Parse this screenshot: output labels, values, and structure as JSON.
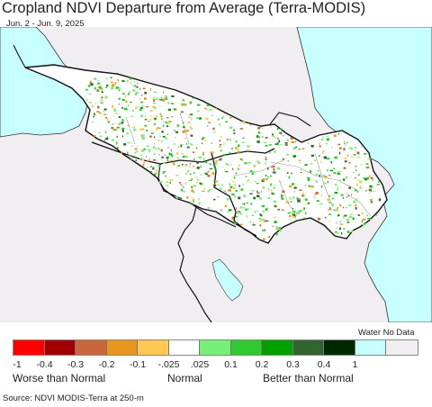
{
  "title": "Cropland NDVI Departure from Average (Terra-MODIS)",
  "subtitle": "Jun. 2 - Jun. 9, 2025",
  "legend": {
    "colors": [
      "#ff0000",
      "#a00000",
      "#c8663c",
      "#e8961e",
      "#ffc850",
      "#ffffff",
      "#78f078",
      "#32c832",
      "#00a000",
      "#326432",
      "#002800",
      "#c8ffff",
      "#f0eef0"
    ],
    "tick_labels": [
      "-1",
      "-0.4",
      "-0.3",
      "-0.2",
      "-0.1",
      "-.025",
      ".025",
      "0.1",
      "0.2",
      "0.3",
      "0.4",
      "1"
    ],
    "water_nodata_label": "Water No Data",
    "category_worse": "Worse than Normal",
    "category_normal": "Normal",
    "category_better": "Better than Normal"
  },
  "map": {
    "water_color": "#c8ffff",
    "land_color": "#f0eef0",
    "country_fill": "#ffffff"
  },
  "source": "Source: NDVI MODIS-Terra at 250-m"
}
